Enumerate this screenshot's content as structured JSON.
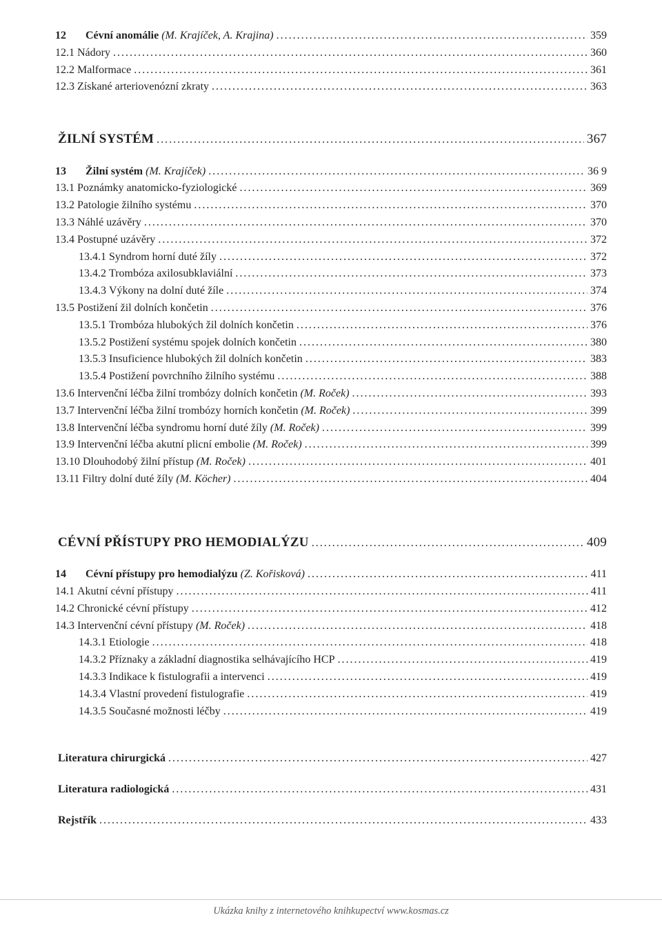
{
  "colors": {
    "text": "#231f20",
    "footer_text": "#595959",
    "footer_rule": "#c9c9c9",
    "bg": "#ffffff"
  },
  "rows": [
    {
      "kind": "toc",
      "indent": 0,
      "num": "12",
      "title": "Cévní anomálie",
      "ital": " (M. Krajíček, A. Krajina)",
      "page": "359",
      "bold_num": true,
      "bold_title": true
    },
    {
      "kind": "toc",
      "indent": 0,
      "num": "12.1",
      "title": " Nádory",
      "page": "360"
    },
    {
      "kind": "toc",
      "indent": 0,
      "num": "12.2",
      "title": " Malformace",
      "page": "361"
    },
    {
      "kind": "toc",
      "indent": 0,
      "num": "12.3",
      "title": " Získané arteriovenózní zkraty",
      "page": "363"
    },
    {
      "kind": "heading",
      "title": "ŽILNÍ SYSTÉM",
      "page": "367"
    },
    {
      "kind": "toc",
      "indent": 0,
      "num": "13",
      "title": "Žilní systém",
      "ital": " (M. Krajíček)",
      "page": "36 9",
      "bold_num": true,
      "bold_title": true
    },
    {
      "kind": "toc",
      "indent": 0,
      "num": "13.1",
      "title": " Poznámky anatomicko-fyziologické",
      "page": "369"
    },
    {
      "kind": "toc",
      "indent": 0,
      "num": "13.2",
      "title": " Patologie žilního systému",
      "page": "370"
    },
    {
      "kind": "toc",
      "indent": 0,
      "num": "13.3",
      "title": " Náhlé uzávěry",
      "page": "370"
    },
    {
      "kind": "toc",
      "indent": 0,
      "num": "13.4",
      "title": " Postupné uzávěry",
      "page": "372"
    },
    {
      "kind": "toc",
      "indent": 1,
      "num": "13.4.1",
      "title": " Syndrom horní duté žíly",
      "page": "372"
    },
    {
      "kind": "toc",
      "indent": 1,
      "num": "13.4.2",
      "title": " Trombóza axilosubklaviální",
      "page": "373"
    },
    {
      "kind": "toc",
      "indent": 1,
      "num": "13.4.3",
      "title": " Výkony na dolní duté žíle",
      "page": "374"
    },
    {
      "kind": "toc",
      "indent": 0,
      "num": "13.5",
      "title": " Postižení žil dolních končetin",
      "page": "376"
    },
    {
      "kind": "toc",
      "indent": 1,
      "num": "13.5.1",
      "title": " Trombóza hlubokých žil dolních končetin",
      "page": "376"
    },
    {
      "kind": "toc",
      "indent": 1,
      "num": "13.5.2",
      "title": " Postižení systému spojek dolních končetin",
      "page": "380"
    },
    {
      "kind": "toc",
      "indent": 1,
      "num": "13.5.3",
      "title": " Insuficience hlubokých žil dolních končetin",
      "page": "383"
    },
    {
      "kind": "toc",
      "indent": 1,
      "num": "13.5.4",
      "title": " Postižení povrchního žilního systému",
      "page": "388"
    },
    {
      "kind": "toc",
      "indent": 0,
      "num": "13.6",
      "title": " Intervenční léčba žilní trombózy dolních končetin",
      "ital": " (M. Roček)",
      "page": "393"
    },
    {
      "kind": "toc",
      "indent": 0,
      "num": "13.7",
      "title": " Intervenční léčba žilní trombózy horních končetin",
      "ital": " (M. Roček)",
      "page": "399"
    },
    {
      "kind": "toc",
      "indent": 0,
      "num": "13.8",
      "title": " Intervenční léčba syndromu horní duté žíly",
      "ital": " (M. Roček)",
      "page": "399"
    },
    {
      "kind": "toc",
      "indent": 0,
      "num": "13.9",
      "title": " Intervenční léčba akutní plicní embolie",
      "ital": " (M. Roček)",
      "page": "399"
    },
    {
      "kind": "toc",
      "indent": 0,
      "num": "13.10",
      "title": " Dlouhodobý žilní přístup",
      "ital": " (M. Roček)",
      "page": "401"
    },
    {
      "kind": "toc",
      "indent": 0,
      "num": "13.11",
      "title": " Filtry dolní duté žíly",
      "ital": " (M. Köcher)",
      "page": "404"
    },
    {
      "kind": "heading",
      "title": "CÉVNÍ PŘÍSTUPY PRO HEMODIALÝZU",
      "page": "409",
      "extra_top": true
    },
    {
      "kind": "toc",
      "indent": 0,
      "num": "14",
      "title": "Cévní přístupy pro hemodialýzu",
      "ital": " (Z. Kořisková)",
      "page": "411",
      "bold_num": true,
      "bold_title": true
    },
    {
      "kind": "toc",
      "indent": 0,
      "num": "14.1",
      "title": " Akutní cévní přístupy",
      "page": "411"
    },
    {
      "kind": "toc",
      "indent": 0,
      "num": "14.2",
      "title": " Chronické cévní přístupy",
      "page": "412"
    },
    {
      "kind": "toc",
      "indent": 0,
      "num": "14.3",
      "title": " Intervenční cévní přístupy",
      "ital": " (M. Roček)",
      "page": "418"
    },
    {
      "kind": "toc",
      "indent": 1,
      "num": "14.3.1",
      "title": " Etiologie",
      "page": "418"
    },
    {
      "kind": "toc",
      "indent": 1,
      "num": "14.3.2",
      "title": " Příznaky a základní diagnostika selhávajícího HCP",
      "page": "419"
    },
    {
      "kind": "toc",
      "indent": 1,
      "num": "14.3.3",
      "title": " Indikace k fistulografii a intervenci",
      "page": "419"
    },
    {
      "kind": "toc",
      "indent": 1,
      "num": "14.3.4",
      "title": " Vlastní provedení fistulografie",
      "page": "419"
    },
    {
      "kind": "toc",
      "indent": 1,
      "num": "14.3.5",
      "title": " Současné možnosti léčby",
      "page": "419"
    },
    {
      "kind": "spacer"
    },
    {
      "kind": "toc",
      "indent": 0,
      "num": "",
      "title": "Literatura chirurgická",
      "page": "427",
      "bold_title": true
    },
    {
      "kind": "spacer-md"
    },
    {
      "kind": "toc",
      "indent": 0,
      "num": "",
      "title": "Literatura radiologická",
      "page": "431",
      "bold_title": true
    },
    {
      "kind": "spacer-md"
    },
    {
      "kind": "toc",
      "indent": 0,
      "num": "",
      "title": "Rejstřík",
      "page": "433",
      "bold_title": true
    }
  ],
  "footer": "Ukázka knihy z internetového knihkupectví www.kosmas.cz"
}
